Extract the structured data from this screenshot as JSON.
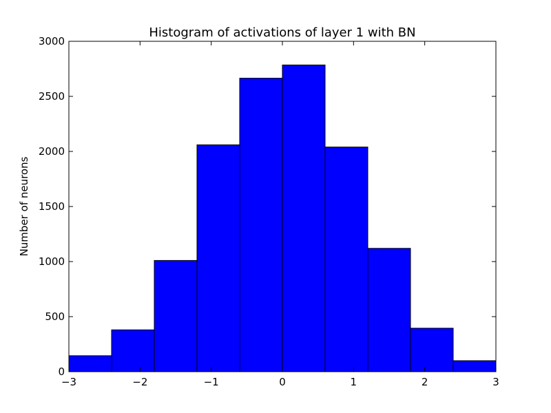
{
  "chart_data": {
    "type": "bar",
    "title": "Histogram of activations of layer 1  with BN",
    "xlabel": "",
    "ylabel": "Number of neurons",
    "xlim": [
      -3,
      3
    ],
    "ylim": [
      0,
      3000
    ],
    "bin_edges": [
      -3,
      -2.4,
      -1.8,
      -1.2,
      -0.6,
      0,
      0.6,
      1.2,
      1.8,
      2.4,
      3
    ],
    "values": [
      145,
      380,
      1010,
      2060,
      2665,
      2785,
      2040,
      1120,
      395,
      100
    ],
    "xticks": [
      -3,
      -2,
      -1,
      0,
      1,
      2,
      3
    ],
    "xtick_labels": [
      "−3",
      "−2",
      "−1",
      "0",
      "1",
      "2",
      "3"
    ],
    "yticks": [
      0,
      500,
      1000,
      1500,
      2000,
      2500,
      3000
    ],
    "ytick_labels": [
      "0",
      "500",
      "1000",
      "1500",
      "2000",
      "2500",
      "3000"
    ],
    "bar_color": "#0000ff",
    "edge_color": "#000000",
    "grid": false,
    "legend": "none"
  }
}
